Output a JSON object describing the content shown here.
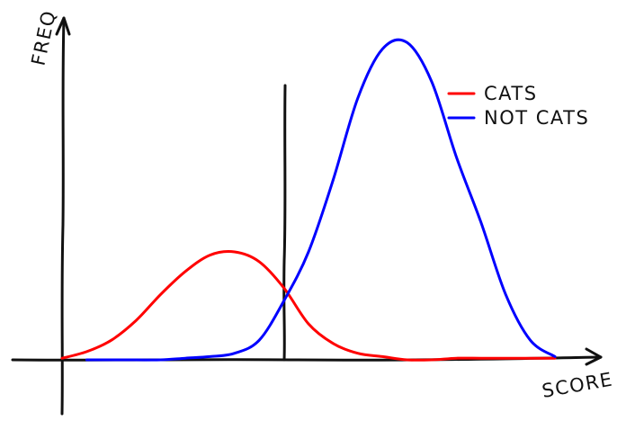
{
  "chart_data": {
    "type": "line",
    "xlabel": "SCORE",
    "ylabel": "FREQ",
    "xlim": [
      0,
      10
    ],
    "ylim": [
      0,
      1.1
    ],
    "grid": false,
    "legend_position": "top-right",
    "threshold_x": 4.5,
    "series": [
      {
        "name": "CATS",
        "color": "#ff0000",
        "x": [
          0,
          0.5,
          1,
          1.5,
          2,
          2.5,
          3,
          3.5,
          4,
          4.5,
          5,
          5.5,
          6,
          6.5,
          7,
          7.5,
          8,
          8.5,
          9,
          9.5,
          10
        ],
        "y": [
          0.005,
          0.025,
          0.06,
          0.12,
          0.2,
          0.27,
          0.32,
          0.33,
          0.3,
          0.22,
          0.11,
          0.05,
          0.02,
          0.01,
          0.0,
          0.0,
          0.005,
          0.005,
          0.005,
          0.005,
          0.005
        ]
      },
      {
        "name": "NOT CATS",
        "color": "#0000ff",
        "x": [
          0.5,
          1,
          1.5,
          2,
          2.5,
          3,
          3.5,
          4,
          4.5,
          5,
          5.5,
          6,
          6.5,
          7,
          7.5,
          8,
          8.5,
          9,
          9.5,
          10
        ],
        "y": [
          0.0,
          0.0,
          0.0,
          0.0,
          0.005,
          0.01,
          0.02,
          0.06,
          0.18,
          0.33,
          0.55,
          0.8,
          0.95,
          0.97,
          0.85,
          0.62,
          0.42,
          0.2,
          0.06,
          0.01
        ]
      }
    ]
  }
}
